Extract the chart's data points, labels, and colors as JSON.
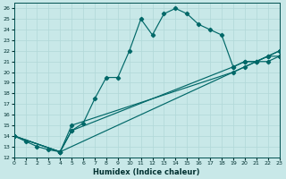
{
  "xlabel": "Humidex (Indice chaleur)",
  "bg_color": "#c8e8e8",
  "grid_color": "#b0d8d8",
  "line_color": "#006868",
  "xlim": [
    0,
    23
  ],
  "ylim": [
    12,
    26.5
  ],
  "xticks": [
    0,
    1,
    2,
    3,
    4,
    5,
    6,
    7,
    8,
    9,
    10,
    11,
    12,
    13,
    14,
    15,
    16,
    17,
    18,
    19,
    20,
    21,
    22,
    23
  ],
  "yticks": [
    12,
    13,
    14,
    15,
    16,
    17,
    18,
    19,
    20,
    21,
    22,
    23,
    24,
    25,
    26
  ],
  "curve_x": [
    0,
    1,
    2,
    3,
    4,
    5,
    6,
    7,
    8,
    9,
    10,
    11,
    12,
    13,
    14,
    15,
    16,
    17,
    18,
    19,
    20,
    21,
    22,
    23
  ],
  "curve_y": [
    14,
    13.5,
    13,
    12.7,
    12.5,
    14.5,
    15.2,
    17.5,
    19.5,
    19.5,
    22,
    25,
    23.5,
    25.5,
    26,
    25.5,
    24.5,
    24,
    23.5,
    20.5,
    21,
    21,
    21.5,
    22
  ],
  "line1_x": [
    0,
    4,
    23
  ],
  "line1_y": [
    14,
    12.5,
    22
  ],
  "line2_x": [
    0,
    4,
    5,
    19,
    20,
    21,
    22,
    23
  ],
  "line2_y": [
    14,
    12.5,
    14.5,
    20.5,
    21,
    21,
    21.5,
    21.5
  ],
  "line3_x": [
    0,
    4,
    5,
    19,
    20,
    21,
    22,
    23
  ],
  "line3_y": [
    14,
    12.5,
    15,
    20,
    20.5,
    21,
    21,
    21.5
  ]
}
